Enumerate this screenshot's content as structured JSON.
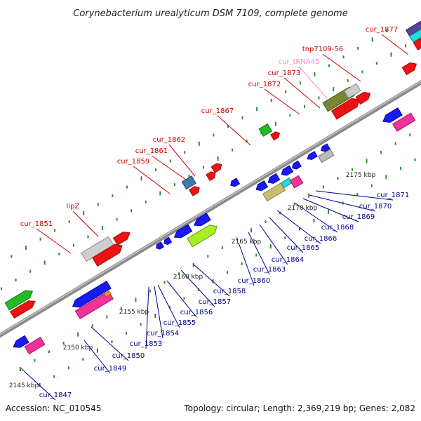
{
  "title": "Corynebacterium urealyticum DSM 7109, complete genome",
  "footer": {
    "accession": "Accession: NC_010545",
    "stats": "Topology: circular; Length: 2,369,219 bp; Genes: 2,082"
  },
  "colors": {
    "forward_label": "#cc0000",
    "reverse_label": "#00008b",
    "trna_label": "#ff88cc",
    "backbone": "#808080",
    "tick": "#2e8b2e"
  },
  "scale_labels": [
    "2145 kbp",
    "2150 kbp",
    "2155 kbp",
    "2160 kbp",
    "2165 kbp",
    "2170 kbp",
    "2175 kbp"
  ],
  "labels_top": [
    "cur_1877",
    "tnp7109-56",
    "cur_tRNA45",
    "cur_1873",
    "cur_1872",
    "cur_1867",
    "cur_1862",
    "cur_1861",
    "cur_1859",
    "lipZ",
    "cur_1851"
  ],
  "labels_bottom": [
    "cur_1871",
    "cur_1870",
    "cur_1869",
    "cur_1868",
    "cur_1866",
    "cur_1865",
    "cur_1864",
    "cur_1863",
    "cur_1860",
    "cur_1858",
    "cur_1857",
    "cur_1856",
    "cur_1855",
    "cur_1854",
    "cur_1853",
    "cur_1850",
    "cur_1849",
    "cur_1847"
  ]
}
